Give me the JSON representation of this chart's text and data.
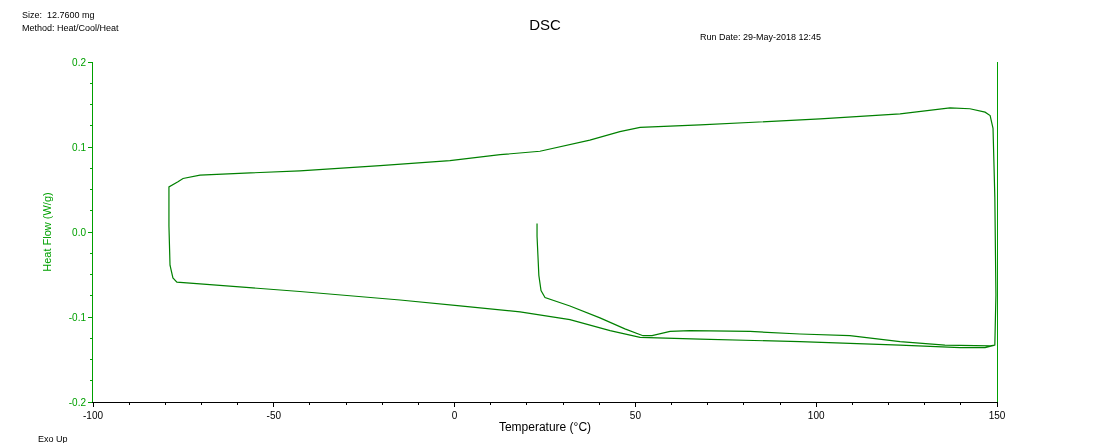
{
  "chart_data": {
    "type": "line",
    "title": "DSC",
    "xlabel": "Temperature (°C)",
    "ylabel": "Heat Flow (W/g)",
    "annotations": [
      "Size:  12.7600 mg",
      "Method: Heat/Cool/Heat",
      "Run Date: 29-May-2018 12:45",
      "Exo Up"
    ],
    "xlim": [
      -100,
      150
    ],
    "xticks": [
      -100,
      -50,
      0,
      50,
      100,
      150
    ],
    "ylim": [
      -0.2,
      0.2
    ],
    "yticks": [
      -0.2,
      -0.1,
      {
        "value": 0,
        "label": "0.0"
      },
      0.1,
      0.2
    ],
    "line_style": "solid",
    "marker": "none",
    "series": [
      {
        "color": "#008000",
        "x": [
          22.8,
          22.8,
          23.3,
          23.9,
          25.0,
          31.9,
          40.2,
          47.1,
          52.1,
          54.6,
          59.6,
          65.1,
          81.7,
          95.5,
          109.3,
          123.2,
          135.6,
          148.1,
          149.4,
          149.7,
          149.4,
          148.9,
          148.1,
          146.7,
          142.5,
          137.0,
          123.2,
          101.1,
          67.9,
          51.3,
          45.7,
          37.4,
          23.6,
          12.6,
          -1.3,
          -20.6,
          -42.8,
          -70.4,
          -75.1,
          -76.5,
          -79.0,
          -79.0,
          -78.7,
          -77.9,
          -76.8,
          -70.4,
          -42.8,
          -15.1,
          1.5,
          18.1,
          31.9,
          43.0,
          51.3,
          67.9,
          95.5,
          123.2,
          139.8,
          146.7,
          149.4
        ],
        "values": [
          0.01,
          -0.005,
          -0.051,
          -0.069,
          -0.077,
          -0.087,
          -0.101,
          -0.114,
          -0.122,
          -0.122,
          -0.117,
          -0.116,
          -0.117,
          -0.12,
          -0.122,
          -0.129,
          -0.133,
          -0.134,
          -0.133,
          -0.074,
          0.041,
          0.122,
          0.137,
          0.141,
          0.145,
          0.146,
          0.139,
          0.133,
          0.126,
          0.123,
          0.118,
          0.108,
          0.095,
          0.091,
          0.084,
          0.078,
          0.072,
          0.067,
          0.063,
          0.059,
          0.053,
          0.007,
          -0.039,
          -0.054,
          -0.059,
          -0.061,
          -0.07,
          -0.08,
          -0.087,
          -0.094,
          -0.103,
          -0.116,
          -0.124,
          -0.126,
          -0.129,
          -0.133,
          -0.136,
          -0.136,
          -0.133
        ]
      }
    ]
  }
}
